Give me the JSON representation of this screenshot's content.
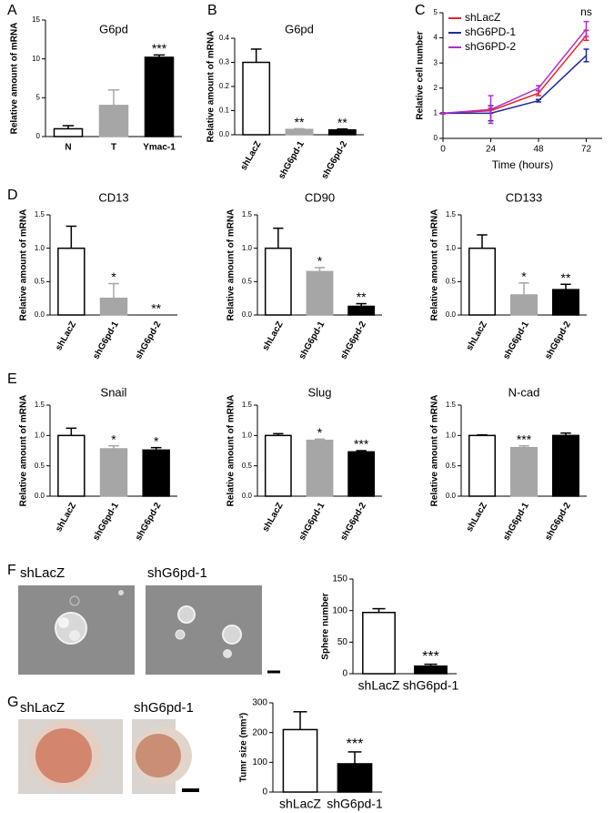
{
  "panel_labels": [
    "A",
    "B",
    "C",
    "D",
    "E",
    "F",
    "G"
  ],
  "image_labels": {
    "f": [
      "shLacZ",
      "shG6pd-1"
    ],
    "g": [
      "shLacZ",
      "shG6pd-1"
    ]
  },
  "chart_data": [
    {
      "type": "bar",
      "title": "G6pd",
      "y_label": "Relative amount of mRNA",
      "categories": [
        "N",
        "T",
        "Ymac-1"
      ],
      "values": [
        1,
        4,
        10.2
      ],
      "errors": [
        0.4,
        2,
        0.3
      ],
      "colors": [
        "#ffffff",
        "#a6a6a6",
        "#000000"
      ],
      "significance": [
        null,
        null,
        "***"
      ],
      "ylim": [
        0,
        15
      ],
      "yticks": [
        0,
        5,
        10,
        15
      ]
    },
    {
      "type": "bar",
      "title": "G6pd",
      "y_label": "Relative amount of mRNA",
      "categories": [
        "shLacZ",
        "shG6pd-1",
        "shG6pd-2"
      ],
      "values": [
        0.3,
        0.022,
        0.02
      ],
      "errors": [
        0.055,
        0.003,
        0.004
      ],
      "colors": [
        "#ffffff",
        "#a6a6a6",
        "#000000"
      ],
      "significance": [
        null,
        "**",
        "**"
      ],
      "ylim": [
        0,
        0.4
      ],
      "yticks": [
        {
          "value": 0,
          "label": "0.0"
        },
        0.1,
        0.2,
        0.3,
        0.4
      ]
    },
    {
      "type": "line",
      "x_label": "Time (hours)",
      "y_label": "Relative cell number",
      "x": [
        0,
        24,
        48,
        72
      ],
      "xlim": [
        0,
        80
      ],
      "xticks": [
        0,
        24,
        48,
        72
      ],
      "ylim": [
        0,
        5
      ],
      "yticks": [
        0,
        1,
        2,
        3,
        4,
        5
      ],
      "legend": "upper left",
      "annotation": "ns",
      "series": [
        {
          "name": "shLacZ",
          "color": "#e8232a",
          "values": [
            1,
            1.1,
            1.8,
            4.1
          ],
          "errors": [
            0.02,
            0.1,
            0.1,
            0.2
          ]
        },
        {
          "name": "shG6PD-1",
          "color": "#1f2a9c",
          "values": [
            1,
            1.0,
            1.5,
            3.3
          ],
          "errors": [
            0.02,
            0.3,
            0.05,
            0.25
          ]
        },
        {
          "name": "shG6PD-2",
          "color": "#b02fc8",
          "values": [
            1,
            1.15,
            2.0,
            4.35
          ],
          "errors": [
            0.02,
            0.55,
            0.1,
            0.3
          ]
        }
      ]
    },
    {
      "type": "bar",
      "title": "CD13",
      "y_label": "Relative amount of mRNA",
      "categories": [
        "shLacZ",
        "shG6pd-1",
        "shG6pd-2"
      ],
      "values": [
        1,
        0.25,
        0
      ],
      "errors": [
        0.33,
        0.22,
        0
      ],
      "colors": [
        "#ffffff",
        "#a6a6a6",
        "#000000"
      ],
      "significance": [
        null,
        "*",
        "**"
      ],
      "ylim": [
        0,
        1.5
      ],
      "yticks": [
        {
          "value": 0,
          "label": "0.0"
        },
        0.5,
        {
          "value": 1,
          "label": "1.0"
        },
        1.5
      ]
    },
    {
      "type": "bar",
      "title": "CD90",
      "y_label": "Relative amount of mRNA",
      "categories": [
        "shLacZ",
        "shG6pd-1",
        "shG6pd-2"
      ],
      "values": [
        1,
        0.65,
        0.13
      ],
      "errors": [
        0.3,
        0.06,
        0.04
      ],
      "colors": [
        "#ffffff",
        "#a6a6a6",
        "#000000"
      ],
      "significance": [
        null,
        "*",
        "**"
      ],
      "ylim": [
        0,
        1.5
      ],
      "yticks": [
        {
          "value": 0,
          "label": "0.0"
        },
        0.5,
        {
          "value": 1,
          "label": "1.0"
        },
        1.5
      ]
    },
    {
      "type": "bar",
      "title": "CD133",
      "y_label": "Relative amount of mRNA",
      "categories": [
        "shLacZ",
        "shG6pd-1",
        "shG6pd-2"
      ],
      "values": [
        1,
        0.3,
        0.38
      ],
      "errors": [
        0.2,
        0.18,
        0.08
      ],
      "colors": [
        "#ffffff",
        "#a6a6a6",
        "#000000"
      ],
      "significance": [
        null,
        "*",
        "**"
      ],
      "ylim": [
        0,
        1.5
      ],
      "yticks": [
        {
          "value": 0,
          "label": "0.0"
        },
        0.5,
        {
          "value": 1,
          "label": "1.0"
        },
        1.5
      ]
    },
    {
      "type": "bar",
      "title": "Snail",
      "y_label": "Relative amount of mRNA",
      "categories": [
        "shLacZ",
        "shG6pd-1",
        "shG6pd-2"
      ],
      "values": [
        1,
        0.78,
        0.76
      ],
      "errors": [
        0.12,
        0.05,
        0.04
      ],
      "colors": [
        "#ffffff",
        "#a6a6a6",
        "#000000"
      ],
      "significance": [
        null,
        "*",
        "*"
      ],
      "ylim": [
        0,
        1.5
      ],
      "yticks": [
        {
          "value": 0,
          "label": "0.0"
        },
        0.5,
        {
          "value": 1,
          "label": "1.0"
        },
        1.5
      ]
    },
    {
      "type": "bar",
      "title": "Slug",
      "y_label": "Relative amount of mRNA",
      "categories": [
        "shLacZ",
        "shG6pd-1",
        "shG6pd-2"
      ],
      "values": [
        1,
        0.92,
        0.73
      ],
      "errors": [
        0.03,
        0.02,
        0.02
      ],
      "colors": [
        "#ffffff",
        "#a6a6a6",
        "#000000"
      ],
      "significance": [
        null,
        "*",
        "***"
      ],
      "ylim": [
        0,
        1.5
      ],
      "yticks": [
        {
          "value": 0,
          "label": "0.0"
        },
        0.5,
        {
          "value": 1,
          "label": "1.0"
        },
        1.5
      ]
    },
    {
      "type": "bar",
      "title": "N-cad",
      "y_label": "Relative amount of mRNA",
      "categories": [
        "shLacZ",
        "shG6pd-1",
        "shG6pd-2"
      ],
      "values": [
        1,
        0.8,
        1.0
      ],
      "errors": [
        0.01,
        0.03,
        0.04
      ],
      "colors": [
        "#ffffff",
        "#a6a6a6",
        "#000000"
      ],
      "significance": [
        null,
        "***",
        null
      ],
      "ylim": [
        0,
        1.5
      ],
      "yticks": [
        {
          "value": 0,
          "label": "0.0"
        },
        0.5,
        {
          "value": 1,
          "label": "1.0"
        },
        1.5
      ]
    },
    {
      "type": "bar",
      "y_label": "Sphere number",
      "categories": [
        "shLacZ",
        "shG6pd-1"
      ],
      "values": [
        97,
        12
      ],
      "errors": [
        6,
        3
      ],
      "colors": [
        "#ffffff",
        "#000000"
      ],
      "significance": [
        null,
        "***"
      ],
      "ylim": [
        0,
        150
      ],
      "yticks": [
        0,
        50,
        100,
        150
      ]
    },
    {
      "type": "bar",
      "y_label": "Tumr size (mm³)",
      "categories": [
        "shLacZ",
        "shG6pd-1"
      ],
      "values": [
        210,
        95
      ],
      "errors": [
        60,
        40
      ],
      "colors": [
        "#ffffff",
        "#000000"
      ],
      "significance": [
        null,
        "***"
      ],
      "ylim": [
        0,
        300
      ],
      "yticks": [
        0,
        100,
        200,
        300
      ]
    }
  ]
}
